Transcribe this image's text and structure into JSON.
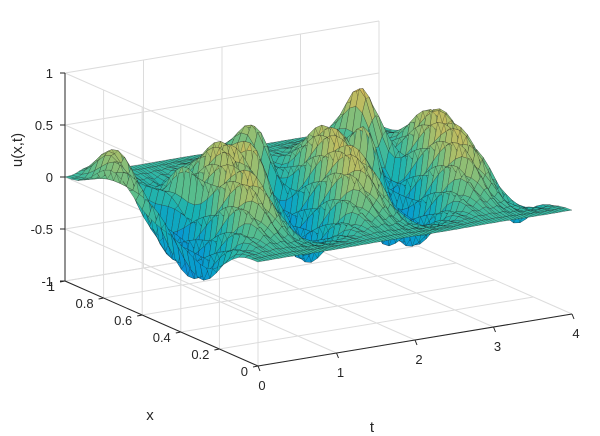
{
  "chart_data": {
    "type": "surface",
    "colormap": "parula",
    "title": "",
    "xlabel": "t",
    "ylabel": "x",
    "zlabel": "u(x,t)",
    "tlim": [
      0,
      4
    ],
    "xlim": [
      0,
      1
    ],
    "zlim": [
      -1,
      1
    ],
    "grid": true,
    "box": true,
    "t_ticks": [
      "0",
      "1",
      "2",
      "3",
      "4"
    ],
    "x_ticks": [
      "0",
      "0.2",
      "0.4",
      "0.6",
      "0.8",
      "1"
    ],
    "z_ticks": [
      "-1",
      "-0.5",
      "0",
      "0.5",
      "1"
    ],
    "surface_features": [
      {
        "t": 0.25,
        "x": 0.85,
        "u": 0.45
      },
      {
        "t": 0.7,
        "x": 0.7,
        "u": 0.6
      },
      {
        "t": 1.0,
        "x": 0.4,
        "u": -0.6
      },
      {
        "t": 1.4,
        "x": 0.55,
        "u": 0.55
      },
      {
        "t": 2.05,
        "x": 0.85,
        "u": 0.65
      },
      {
        "t": 2.5,
        "x": 0.4,
        "u": -0.5
      },
      {
        "t": 3.0,
        "x": 0.65,
        "u": 0.75
      },
      {
        "t": 3.45,
        "x": 0.85,
        "u": 0.95
      }
    ]
  }
}
